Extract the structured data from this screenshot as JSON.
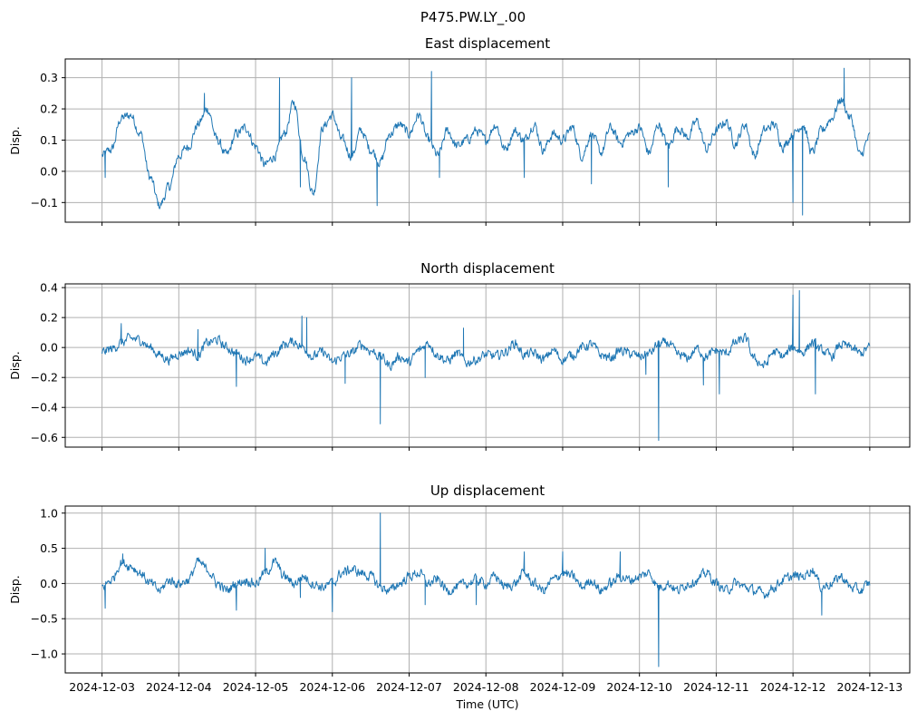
{
  "suptitle": "P475.PW.LY_.00",
  "colors": {
    "series": "#1f77b4",
    "grid": "#b0b0b0"
  },
  "chart_data": [
    {
      "type": "line",
      "title": "East displacement",
      "ylabel": "Disp.",
      "xlabel": "",
      "xlim": [
        "2024-12-02T12:30",
        "2024-12-13T12:30"
      ],
      "ylim": [
        -0.163,
        0.36
      ],
      "yticks": [
        -0.1,
        0.0,
        0.1,
        0.2,
        0.3
      ],
      "ytick_labels": [
        "−0.1",
        "0.0",
        "0.1",
        "0.2",
        "0.3"
      ],
      "grid": true,
      "series": [
        {
          "x": [
            "2024-12-03T00:00",
            "2024-12-03T03:00",
            "2024-12-03T06:00",
            "2024-12-03T09:00",
            "2024-12-03T12:00",
            "2024-12-03T15:00",
            "2024-12-03T18:00",
            "2024-12-03T21:00",
            "2024-12-04T00:00",
            "2024-12-04T03:00",
            "2024-12-04T06:00",
            "2024-12-04T09:00",
            "2024-12-04T12:00",
            "2024-12-04T15:00",
            "2024-12-04T18:00",
            "2024-12-04T21:00",
            "2024-12-05T00:00",
            "2024-12-05T03:00",
            "2024-12-05T06:00",
            "2024-12-05T09:00",
            "2024-12-05T12:00",
            "2024-12-05T15:00",
            "2024-12-05T18:00",
            "2024-12-05T21:00",
            "2024-12-06T00:00",
            "2024-12-06T03:00",
            "2024-12-06T06:00",
            "2024-12-06T09:00",
            "2024-12-06T12:00",
            "2024-12-06T15:00",
            "2024-12-06T18:00",
            "2024-12-06T21:00",
            "2024-12-07T00:00",
            "2024-12-07T03:00",
            "2024-12-07T06:00",
            "2024-12-07T09:00",
            "2024-12-07T12:00",
            "2024-12-07T15:00",
            "2024-12-07T18:00",
            "2024-12-07T21:00",
            "2024-12-08T00:00",
            "2024-12-08T03:00",
            "2024-12-08T06:00",
            "2024-12-08T09:00",
            "2024-12-08T12:00",
            "2024-12-08T15:00",
            "2024-12-08T18:00",
            "2024-12-08T21:00",
            "2024-12-09T00:00",
            "2024-12-09T03:00",
            "2024-12-09T06:00",
            "2024-12-09T09:00",
            "2024-12-09T12:00",
            "2024-12-09T15:00",
            "2024-12-09T18:00",
            "2024-12-09T21:00",
            "2024-12-10T00:00",
            "2024-12-10T03:00",
            "2024-12-10T06:00",
            "2024-12-10T09:00",
            "2024-12-10T12:00",
            "2024-12-10T15:00",
            "2024-12-10T18:00",
            "2024-12-10T21:00",
            "2024-12-11T00:00",
            "2024-12-11T03:00",
            "2024-12-11T06:00",
            "2024-12-11T09:00",
            "2024-12-11T12:00",
            "2024-12-11T15:00",
            "2024-12-11T18:00",
            "2024-12-11T21:00",
            "2024-12-12T00:00",
            "2024-12-12T03:00",
            "2024-12-12T06:00",
            "2024-12-12T09:00",
            "2024-12-12T12:00",
            "2024-12-12T15:00",
            "2024-12-12T18:00",
            "2024-12-12T21:00",
            "2024-12-13T00:00"
          ],
          "values": [
            0.05,
            0.07,
            0.17,
            0.18,
            0.12,
            -0.02,
            -0.11,
            -0.05,
            0.05,
            0.08,
            0.15,
            0.2,
            0.1,
            0.05,
            0.12,
            0.14,
            0.08,
            0.02,
            0.05,
            0.12,
            0.22,
            0.05,
            -0.07,
            0.14,
            0.18,
            0.1,
            0.05,
            0.13,
            0.07,
            0.03,
            0.12,
            0.15,
            0.12,
            0.18,
            0.1,
            0.05,
            0.13,
            0.08,
            0.1,
            0.13,
            0.1,
            0.15,
            0.07,
            0.13,
            0.1,
            0.15,
            0.07,
            0.12,
            0.1,
            0.14,
            0.05,
            0.12,
            0.06,
            0.14,
            0.09,
            0.12,
            0.14,
            0.06,
            0.15,
            0.08,
            0.14,
            0.11,
            0.16,
            0.07,
            0.13,
            0.16,
            0.09,
            0.15,
            0.05,
            0.13,
            0.15,
            0.08,
            0.12,
            0.15,
            0.06,
            0.13,
            0.17,
            0.23,
            0.17,
            0.05,
            0.11
          ],
          "spikes": [
            [
              "2024-12-03T01:00",
              -0.02
            ],
            [
              "2024-12-04T08:00",
              0.25
            ],
            [
              "2024-12-05T07:30",
              0.3
            ],
            [
              "2024-12-05T14:00",
              -0.05
            ],
            [
              "2024-12-06T06:00",
              0.3
            ],
            [
              "2024-12-06T14:00",
              -0.11
            ],
            [
              "2024-12-07T07:00",
              0.32
            ],
            [
              "2024-12-07T09:30",
              -0.02
            ],
            [
              "2024-12-08T12:00",
              -0.02
            ],
            [
              "2024-12-09T09:00",
              -0.04
            ],
            [
              "2024-12-10T09:00",
              -0.05
            ],
            [
              "2024-12-12T00:00",
              -0.1
            ],
            [
              "2024-12-12T03:00",
              -0.14
            ],
            [
              "2024-12-12T16:00",
              0.33
            ]
          ]
        }
      ]
    },
    {
      "type": "line",
      "title": "North displacement",
      "ylabel": "Disp.",
      "xlabel": "",
      "xlim": [
        "2024-12-02T12:30",
        "2024-12-13T12:30"
      ],
      "ylim": [
        -0.665,
        0.425
      ],
      "yticks": [
        -0.6,
        -0.4,
        -0.2,
        0.0,
        0.2,
        0.4
      ],
      "ytick_labels": [
        "−0.6",
        "−0.4",
        "−0.2",
        "0.0",
        "0.2",
        "0.4"
      ],
      "grid": true,
      "series": [
        {
          "x": [
            "2024-12-03T00:00",
            "2024-12-03T03:00",
            "2024-12-03T06:00",
            "2024-12-03T09:00",
            "2024-12-03T12:00",
            "2024-12-03T15:00",
            "2024-12-03T18:00",
            "2024-12-03T21:00",
            "2024-12-04T00:00",
            "2024-12-04T03:00",
            "2024-12-04T06:00",
            "2024-12-04T09:00",
            "2024-12-04T12:00",
            "2024-12-04T15:00",
            "2024-12-04T18:00",
            "2024-12-04T21:00",
            "2024-12-05T00:00",
            "2024-12-05T03:00",
            "2024-12-05T06:00",
            "2024-12-05T09:00",
            "2024-12-05T12:00",
            "2024-12-05T15:00",
            "2024-12-05T18:00",
            "2024-12-05T21:00",
            "2024-12-06T00:00",
            "2024-12-06T03:00",
            "2024-12-06T06:00",
            "2024-12-06T09:00",
            "2024-12-06T12:00",
            "2024-12-06T15:00",
            "2024-12-06T18:00",
            "2024-12-06T21:00",
            "2024-12-07T00:00",
            "2024-12-07T03:00",
            "2024-12-07T06:00",
            "2024-12-07T09:00",
            "2024-12-07T12:00",
            "2024-12-07T15:00",
            "2024-12-07T18:00",
            "2024-12-07T21:00",
            "2024-12-08T00:00",
            "2024-12-08T03:00",
            "2024-12-08T06:00",
            "2024-12-08T09:00",
            "2024-12-08T12:00",
            "2024-12-08T15:00",
            "2024-12-08T18:00",
            "2024-12-08T21:00",
            "2024-12-09T00:00",
            "2024-12-09T03:00",
            "2024-12-09T06:00",
            "2024-12-09T09:00",
            "2024-12-09T12:00",
            "2024-12-09T15:00",
            "2024-12-09T18:00",
            "2024-12-09T21:00",
            "2024-12-10T00:00",
            "2024-12-10T03:00",
            "2024-12-10T06:00",
            "2024-12-10T09:00",
            "2024-12-10T12:00",
            "2024-12-10T15:00",
            "2024-12-10T18:00",
            "2024-12-10T21:00",
            "2024-12-11T00:00",
            "2024-12-11T03:00",
            "2024-12-11T06:00",
            "2024-12-11T09:00",
            "2024-12-11T12:00",
            "2024-12-11T15:00",
            "2024-12-11T18:00",
            "2024-12-11T21:00",
            "2024-12-12T00:00",
            "2024-12-12T03:00",
            "2024-12-12T06:00",
            "2024-12-12T09:00",
            "2024-12-12T12:00",
            "2024-12-12T15:00",
            "2024-12-12T18:00",
            "2024-12-12T21:00",
            "2024-12-13T00:00"
          ],
          "values": [
            -0.03,
            -0.01,
            0.03,
            0.06,
            0.05,
            0.0,
            -0.05,
            -0.08,
            -0.04,
            -0.02,
            -0.05,
            0.03,
            0.05,
            0.0,
            -0.04,
            -0.08,
            -0.06,
            -0.1,
            -0.04,
            0.02,
            0.04,
            0.0,
            -0.06,
            -0.03,
            -0.1,
            -0.06,
            -0.04,
            0.02,
            -0.02,
            -0.06,
            -0.12,
            -0.06,
            -0.1,
            -0.02,
            0.03,
            -0.05,
            -0.09,
            -0.04,
            -0.1,
            -0.08,
            -0.05,
            -0.06,
            -0.03,
            0.03,
            -0.05,
            -0.04,
            -0.08,
            -0.02,
            -0.08,
            -0.05,
            0.0,
            0.02,
            -0.05,
            -0.07,
            -0.02,
            -0.04,
            -0.06,
            -0.04,
            0.02,
            0.03,
            -0.05,
            -0.07,
            -0.01,
            -0.06,
            -0.02,
            -0.04,
            0.03,
            0.06,
            -0.08,
            -0.12,
            -0.03,
            -0.06,
            0.0,
            -0.03,
            0.03,
            -0.02,
            -0.06,
            0.02,
            0.0,
            -0.04,
            0.0
          ],
          "spikes": [
            [
              "2024-12-03T06:00",
              0.16
            ],
            [
              "2024-12-04T06:00",
              0.12
            ],
            [
              "2024-12-04T18:00",
              -0.26
            ],
            [
              "2024-12-05T14:30",
              0.21
            ],
            [
              "2024-12-05T16:00",
              0.2
            ],
            [
              "2024-12-06T04:00",
              -0.24
            ],
            [
              "2024-12-06T15:00",
              -0.51
            ],
            [
              "2024-12-07T05:00",
              -0.2
            ],
            [
              "2024-12-07T17:00",
              0.13
            ],
            [
              "2024-12-10T02:00",
              -0.18
            ],
            [
              "2024-12-10T06:00",
              -0.62
            ],
            [
              "2024-12-10T20:00",
              -0.25
            ],
            [
              "2024-12-11T01:00",
              -0.31
            ],
            [
              "2024-12-12T00:00",
              0.35
            ],
            [
              "2024-12-12T02:00",
              0.38
            ],
            [
              "2024-12-12T07:00",
              -0.31
            ]
          ]
        }
      ]
    },
    {
      "type": "line",
      "title": "Up displacement",
      "ylabel": "Disp.",
      "xlabel": "Time (UTC)",
      "xlim": [
        "2024-12-02T12:30",
        "2024-12-13T12:30"
      ],
      "ylim": [
        -1.27,
        1.1
      ],
      "yticks": [
        -1.0,
        -0.5,
        0.0,
        0.5,
        1.0
      ],
      "ytick_labels": [
        "−1.0",
        "−0.5",
        "0.0",
        "0.5",
        "1.0"
      ],
      "xtick_labels": [
        "2024-12-03",
        "2024-12-04",
        "2024-12-05",
        "2024-12-06",
        "2024-12-07",
        "2024-12-08",
        "2024-12-09",
        "2024-12-10",
        "2024-12-11",
        "2024-12-12",
        "2024-12-13"
      ],
      "grid": true,
      "series": [
        {
          "x": [
            "2024-12-03T00:00",
            "2024-12-03T03:00",
            "2024-12-03T06:00",
            "2024-12-03T09:00",
            "2024-12-03T12:00",
            "2024-12-03T15:00",
            "2024-12-03T18:00",
            "2024-12-03T21:00",
            "2024-12-04T00:00",
            "2024-12-04T03:00",
            "2024-12-04T06:00",
            "2024-12-04T09:00",
            "2024-12-04T12:00",
            "2024-12-04T15:00",
            "2024-12-04T18:00",
            "2024-12-04T21:00",
            "2024-12-05T00:00",
            "2024-12-05T03:00",
            "2024-12-05T06:00",
            "2024-12-05T09:00",
            "2024-12-05T12:00",
            "2024-12-05T15:00",
            "2024-12-05T18:00",
            "2024-12-05T21:00",
            "2024-12-06T00:00",
            "2024-12-06T03:00",
            "2024-12-06T06:00",
            "2024-12-06T09:00",
            "2024-12-06T12:00",
            "2024-12-06T15:00",
            "2024-12-06T18:00",
            "2024-12-06T21:00",
            "2024-12-07T00:00",
            "2024-12-07T03:00",
            "2024-12-07T06:00",
            "2024-12-07T09:00",
            "2024-12-07T12:00",
            "2024-12-07T15:00",
            "2024-12-07T18:00",
            "2024-12-07T21:00",
            "2024-12-08T00:00",
            "2024-12-08T03:00",
            "2024-12-08T06:00",
            "2024-12-08T09:00",
            "2024-12-08T12:00",
            "2024-12-08T15:00",
            "2024-12-08T18:00",
            "2024-12-08T21:00",
            "2024-12-09T00:00",
            "2024-12-09T03:00",
            "2024-12-09T06:00",
            "2024-12-09T09:00",
            "2024-12-09T12:00",
            "2024-12-09T15:00",
            "2024-12-09T18:00",
            "2024-12-09T21:00",
            "2024-12-10T00:00",
            "2024-12-10T03:00",
            "2024-12-10T06:00",
            "2024-12-10T09:00",
            "2024-12-10T12:00",
            "2024-12-10T15:00",
            "2024-12-10T18:00",
            "2024-12-10T21:00",
            "2024-12-11T00:00",
            "2024-12-11T03:00",
            "2024-12-11T06:00",
            "2024-12-11T09:00",
            "2024-12-11T12:00",
            "2024-12-11T15:00",
            "2024-12-11T18:00",
            "2024-12-11T21:00",
            "2024-12-12T00:00",
            "2024-12-12T03:00",
            "2024-12-12T06:00",
            "2024-12-12T09:00",
            "2024-12-12T12:00",
            "2024-12-12T15:00",
            "2024-12-12T18:00",
            "2024-12-12T21:00",
            "2024-12-13T00:00"
          ],
          "values": [
            -0.05,
            0.05,
            0.3,
            0.25,
            0.15,
            0.0,
            -0.1,
            0.05,
            0.0,
            0.05,
            0.3,
            0.2,
            0.0,
            -0.1,
            0.0,
            0.05,
            0.0,
            0.15,
            0.3,
            0.1,
            0.0,
            0.1,
            0.0,
            -0.05,
            0.0,
            0.15,
            0.2,
            0.15,
            0.1,
            -0.05,
            -0.1,
            0.0,
            0.1,
            0.15,
            0.0,
            0.05,
            -0.1,
            -0.05,
            0.0,
            0.05,
            0.0,
            0.1,
            -0.05,
            0.0,
            0.15,
            0.0,
            -0.1,
            0.05,
            0.15,
            0.1,
            -0.05,
            0.05,
            -0.1,
            0.0,
            0.1,
            0.05,
            0.1,
            0.15,
            -0.05,
            0.0,
            -0.1,
            0.0,
            0.05,
            0.15,
            0.0,
            -0.1,
            0.0,
            -0.05,
            -0.1,
            -0.15,
            -0.05,
            0.05,
            0.1,
            0.1,
            0.2,
            -0.05,
            0.0,
            0.1,
            -0.05,
            -0.1,
            0.0
          ],
          "spikes": [
            [
              "2024-12-03T01:00",
              -0.35
            ],
            [
              "2024-12-03T06:30",
              0.42
            ],
            [
              "2024-12-04T18:00",
              -0.38
            ],
            [
              "2024-12-05T03:00",
              0.5
            ],
            [
              "2024-12-05T14:00",
              -0.2
            ],
            [
              "2024-12-06T00:00",
              -0.4
            ],
            [
              "2024-12-06T15:00",
              1.0
            ],
            [
              "2024-12-07T05:00",
              -0.3
            ],
            [
              "2024-12-07T21:00",
              -0.3
            ],
            [
              "2024-12-08T12:00",
              0.45
            ],
            [
              "2024-12-09T00:00",
              0.45
            ],
            [
              "2024-12-09T18:00",
              0.45
            ],
            [
              "2024-12-10T06:00",
              -1.18
            ],
            [
              "2024-12-12T09:00",
              -0.45
            ]
          ]
        }
      ]
    }
  ]
}
